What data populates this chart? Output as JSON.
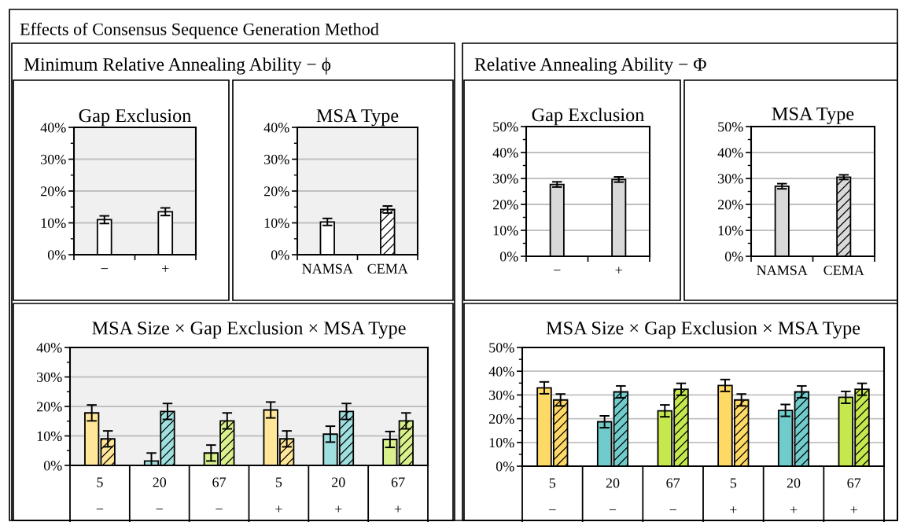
{
  "chart_data": [
    {
      "type": "bar",
      "title": "Gap Exclusion",
      "annotations": [
        "Effects of Consensus Sequence Generation Method",
        "Minimum Relative Annealing Ability − ϕ"
      ],
      "categories": [
        "−",
        "+"
      ],
      "values": [
        11.0,
        13.5
      ],
      "errors": [
        1.2,
        1.2
      ],
      "colors": [
        "#ffffff",
        "#ffffff"
      ],
      "ylim": [
        0,
        40
      ],
      "yticks": [
        {
          "value": 0,
          "label": "0%"
        },
        {
          "value": 5,
          "label": null
        },
        {
          "value": 10,
          "label": "10%"
        },
        {
          "value": 15,
          "label": null
        },
        {
          "value": 20,
          "label": "20%"
        },
        {
          "value": 25,
          "label": null
        },
        {
          "value": 30,
          "label": "30%"
        },
        {
          "value": 35,
          "label": null
        },
        {
          "value": 40,
          "label": "40%"
        }
      ],
      "grid": "y"
    },
    {
      "type": "bar",
      "title": "MSA Type",
      "categories": [
        "NAMSA",
        "CEMA"
      ],
      "series": [
        {
          "color": "#ffffff",
          "values": [
            10.3,
            null
          ],
          "errors": [
            1.1,
            null
          ]
        },
        {
          "color": "#ffffff",
          "values": [
            null,
            14.2
          ],
          "errors": [
            null,
            1.1
          ]
        }
      ],
      "ylim": [
        0,
        40
      ],
      "yticks": [
        {
          "value": 0,
          "label": "0%"
        },
        {
          "value": 5,
          "label": null
        },
        {
          "value": 10,
          "label": "10%"
        },
        {
          "value": 15,
          "label": null
        },
        {
          "value": 20,
          "label": "20%"
        },
        {
          "value": 25,
          "label": null
        },
        {
          "value": 30,
          "label": "30%"
        },
        {
          "value": 35,
          "label": null
        },
        {
          "value": 40,
          "label": "40%"
        }
      ],
      "grid": "y"
    },
    {
      "type": "bar",
      "title": "Gap Exclusion",
      "annotations": [
        "Relative Annealing Ability − Φ"
      ],
      "categories": [
        "−",
        "+"
      ],
      "values": [
        27.7,
        29.6
      ],
      "errors": [
        1.0,
        1.0
      ],
      "colors": [
        "#d9d9d9",
        "#d9d9d9"
      ],
      "ylim": [
        0,
        50
      ],
      "yticks": [
        {
          "value": 0,
          "label": "0%"
        },
        {
          "value": 5,
          "label": null
        },
        {
          "value": 10,
          "label": "10%"
        },
        {
          "value": 15,
          "label": null
        },
        {
          "value": 20,
          "label": "20%"
        },
        {
          "value": 25,
          "label": null
        },
        {
          "value": 30,
          "label": "30%"
        },
        {
          "value": 35,
          "label": null
        },
        {
          "value": 40,
          "label": "40%"
        },
        {
          "value": 45,
          "label": null
        },
        {
          "value": 50,
          "label": "50%"
        }
      ],
      "grid": "y"
    },
    {
      "type": "bar",
      "title": "MSA Type",
      "categories": [
        "NAMSA",
        "CEMA"
      ],
      "series": [
        {
          "color": "#d9d9d9",
          "values": [
            27.0,
            null
          ],
          "errors": [
            1.0,
            null
          ]
        },
        {
          "color": "#d9d9d9",
          "values": [
            null,
            30.5
          ],
          "errors": [
            null,
            0.9
          ]
        }
      ],
      "ylim": [
        0,
        50
      ],
      "yticks": [
        {
          "value": 0,
          "label": "0%"
        },
        {
          "value": 5,
          "label": null
        },
        {
          "value": 10,
          "label": "10%"
        },
        {
          "value": 15,
          "label": null
        },
        {
          "value": 20,
          "label": "20%"
        },
        {
          "value": 25,
          "label": null
        },
        {
          "value": 30,
          "label": "30%"
        },
        {
          "value": 35,
          "label": null
        },
        {
          "value": 40,
          "label": "40%"
        },
        {
          "value": 45,
          "label": null
        },
        {
          "value": 50,
          "label": "50%"
        }
      ],
      "grid": "y"
    },
    {
      "type": "bar",
      "title": "MSA Size × Gap Exclusion × MSA Type",
      "categories": [
        "5\n−",
        "20\n−",
        "67\n−",
        "5\n+",
        "20\n+",
        "67\n+"
      ],
      "series": [
        {
          "colors": [
            "#ffe699",
            "#a0dfdf",
            "#d9f08c",
            "#ffe699",
            "#a0dfdf",
            "#d9f08c"
          ],
          "values": [
            17.8,
            1.5,
            4.2,
            18.8,
            10.6,
            8.8
          ],
          "errors": [
            2.7,
            2.7,
            2.7,
            2.7,
            2.7,
            2.7
          ]
        },
        {
          "colors": [
            "#ffe699",
            "#a0dfdf",
            "#d9f08c",
            "#ffe699",
            "#a0dfdf",
            "#d9f08c"
          ],
          "values": [
            9.0,
            18.3,
            15.1,
            9.0,
            18.3,
            15.1
          ],
          "errors": [
            2.7,
            2.7,
            2.7,
            2.7,
            2.7,
            2.7
          ]
        }
      ],
      "ylim": [
        0,
        40
      ],
      "yticks": [
        {
          "value": 0,
          "label": "0%"
        },
        {
          "value": 5,
          "label": null
        },
        {
          "value": 10,
          "label": "10%"
        },
        {
          "value": 15,
          "label": null
        },
        {
          "value": 20,
          "label": "20%"
        },
        {
          "value": 25,
          "label": null
        },
        {
          "value": 30,
          "label": "30%"
        },
        {
          "value": 35,
          "label": null
        },
        {
          "value": 40,
          "label": "40%"
        }
      ],
      "grid": "y"
    },
    {
      "type": "bar",
      "title": "MSA Size × Gap Exclusion × MSA Type",
      "categories": [
        "5\n−",
        "20\n−",
        "67\n−",
        "5\n+",
        "20\n+",
        "67\n+"
      ],
      "series": [
        {
          "colors": [
            "#ffd966",
            "#70cccc",
            "#c5e84f",
            "#ffd966",
            "#70cccc",
            "#c5e84f"
          ],
          "values": [
            33.0,
            18.7,
            23.3,
            34.0,
            23.5,
            29.0
          ],
          "errors": [
            2.5,
            2.5,
            2.5,
            2.5,
            2.5,
            2.5
          ]
        },
        {
          "colors": [
            "#ffd966",
            "#70cccc",
            "#c5e84f",
            "#ffd966",
            "#70cccc",
            "#c5e84f"
          ],
          "values": [
            27.9,
            31.3,
            32.4,
            27.9,
            31.3,
            32.4
          ],
          "errors": [
            2.5,
            2.5,
            2.5,
            2.5,
            2.5,
            2.5
          ]
        }
      ],
      "ylim": [
        0,
        50
      ],
      "yticks": [
        {
          "value": 0,
          "label": "0%"
        },
        {
          "value": 5,
          "label": null
        },
        {
          "value": 10,
          "label": "10%"
        },
        {
          "value": 15,
          "label": null
        },
        {
          "value": 20,
          "label": "20%"
        },
        {
          "value": 25,
          "label": null
        },
        {
          "value": 30,
          "label": "30%"
        },
        {
          "value": 35,
          "label": null
        },
        {
          "value": 40,
          "label": "40%"
        },
        {
          "value": 45,
          "label": null
        },
        {
          "value": 50,
          "label": "50%"
        }
      ],
      "grid": "y"
    }
  ]
}
